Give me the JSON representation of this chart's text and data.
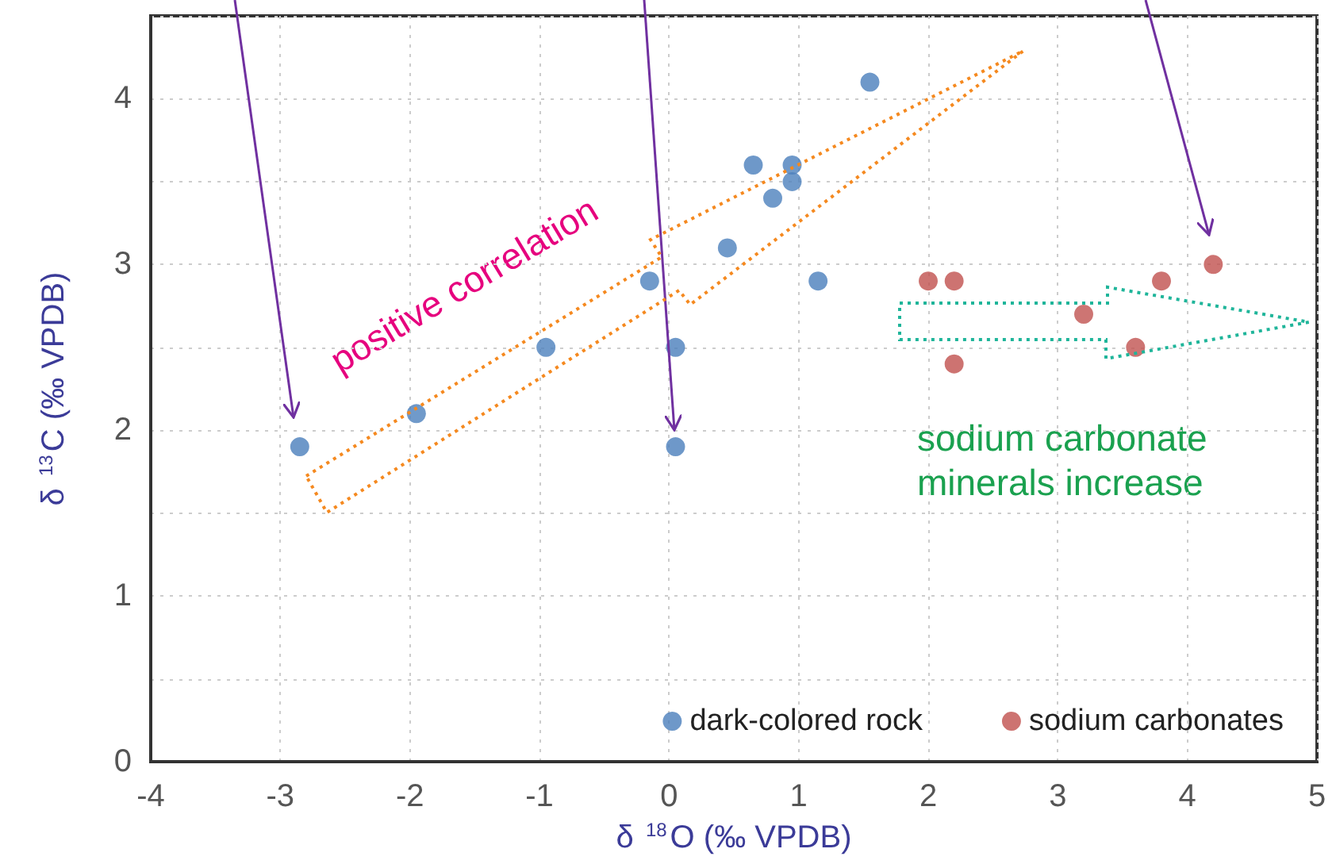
{
  "chart_data": {
    "type": "scatter",
    "xlabel": "δ $^{18}$O (‰ VPDB)",
    "ylabel": "δ $^{13}$C (‰ VPDB)",
    "xlim": [
      -4,
      5
    ],
    "xticks": [
      -4,
      -3,
      -2,
      -1,
      0,
      1,
      2,
      3,
      4,
      5
    ],
    "ylim": [
      0,
      4.5
    ],
    "yticks": [
      0,
      {
        "value": 0.5,
        "label": null
      },
      1,
      {
        "value": 1.5,
        "label": null
      },
      2,
      {
        "value": 2.5,
        "label": null
      },
      3,
      {
        "value": 3.5,
        "label": null
      },
      4,
      {
        "value": 4.5,
        "label": null
      }
    ],
    "grid": true,
    "legend": "bottom right",
    "marker": "circle",
    "series": [
      {
        "name": "dark-colored rock",
        "color": "#4a7ebb",
        "x": [
          -2.85,
          -1.95,
          -0.95,
          -0.15,
          0.05,
          0.05,
          0.45,
          0.65,
          0.8,
          0.95,
          0.95,
          1.15,
          1.55
        ],
        "values": [
          1.9,
          2.1,
          2.5,
          2.9,
          2.5,
          1.9,
          3.1,
          3.6,
          3.4,
          3.6,
          3.5,
          2.9,
          4.1
        ]
      },
      {
        "name": "sodium carbonates",
        "color": "#c0504d",
        "x": [
          2.0,
          2.2,
          2.2,
          3.2,
          3.6,
          3.8,
          4.2
        ],
        "values": [
          2.9,
          2.9,
          2.4,
          2.7,
          2.5,
          2.9,
          3.0
        ]
      }
    ],
    "annotations": [
      "positive correlation",
      "sodium carbonate\nminerals increase"
    ]
  }
}
